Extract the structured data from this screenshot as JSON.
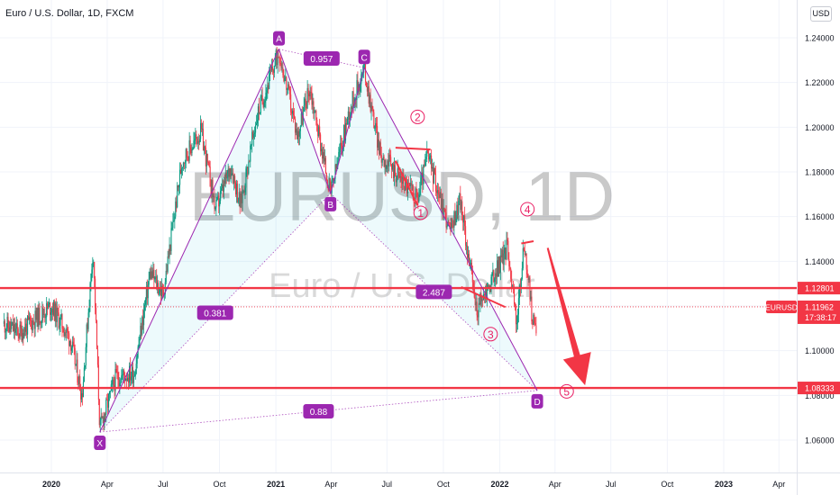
{
  "header": {
    "title": "Euro / U.S. Dollar, 1D, FXCM"
  },
  "currency_button": "USD",
  "watermark": {
    "symbol": "EURUSD, 1D",
    "name": "Euro / U.S. Dollar"
  },
  "chart_data": {
    "type": "candlestick",
    "symbol": "EURUSD",
    "interval": "1D",
    "source": "FXCM",
    "x_ticks": [
      "2020",
      "Apr",
      "Jul",
      "Oct",
      "2021",
      "Apr",
      "Jul",
      "Oct",
      "2022",
      "Apr",
      "Jul",
      "Oct",
      "2023",
      "Apr"
    ],
    "x_range": [
      "2019-10",
      "2023-05"
    ],
    "ylim": [
      1.048,
      1.252
    ],
    "y_ticks": [
      "1.24000",
      "1.22000",
      "1.20000",
      "1.18000",
      "1.16000",
      "1.14000",
      "1.12000",
      "1.10000",
      "1.08000",
      "1.06000"
    ],
    "price_path": [
      [
        "2019-10-15",
        1.112
      ],
      [
        "2019-11-10",
        1.108
      ],
      [
        "2019-12-05",
        1.114
      ],
      [
        "2020-01-01",
        1.12
      ],
      [
        "2020-02-01",
        1.105
      ],
      [
        "2020-02-20",
        1.08
      ],
      [
        "2020-03-09",
        1.146
      ],
      [
        "2020-03-20",
        1.065
      ],
      [
        "2020-04-15",
        1.088
      ],
      [
        "2020-05-15",
        1.09
      ],
      [
        "2020-06-10",
        1.135
      ],
      [
        "2020-07-01",
        1.125
      ],
      [
        "2020-08-01",
        1.185
      ],
      [
        "2020-09-01",
        1.198
      ],
      [
        "2020-09-25",
        1.163
      ],
      [
        "2020-10-20",
        1.183
      ],
      [
        "2020-11-04",
        1.165
      ],
      [
        "2020-12-01",
        1.205
      ],
      [
        "2021-01-06",
        1.234
      ],
      [
        "2021-02-05",
        1.196
      ],
      [
        "2021-02-25",
        1.218
      ],
      [
        "2021-03-31",
        1.17
      ],
      [
        "2021-05-01",
        1.208
      ],
      [
        "2021-05-25",
        1.226
      ],
      [
        "2021-06-20",
        1.188
      ],
      [
        "2021-07-15",
        1.18
      ],
      [
        "2021-08-20",
        1.168
      ],
      [
        "2021-09-05",
        1.188
      ],
      [
        "2021-10-12",
        1.153
      ],
      [
        "2021-10-28",
        1.168
      ],
      [
        "2021-11-24",
        1.118
      ],
      [
        "2021-12-20",
        1.132
      ],
      [
        "2022-01-14",
        1.147
      ],
      [
        "2022-01-28",
        1.112
      ],
      [
        "2022-02-10",
        1.148
      ],
      [
        "2022-02-24",
        1.112
      ],
      [
        "2022-03-02",
        1.112
      ]
    ],
    "horizontal_lines": [
      {
        "price": 1.12801,
        "label": "1.12801",
        "color": "#f23645"
      },
      {
        "price": 1.08333,
        "label": "1.08333",
        "color": "#f23645"
      }
    ],
    "current_price": {
      "symbol": "EURUSD",
      "price": "1.11962",
      "countdown": "17:38:17",
      "color": "#f23645"
    },
    "harmonic_pattern": {
      "points": [
        {
          "label": "X",
          "date": "2020-03-20",
          "price": 1.0636
        },
        {
          "label": "A",
          "date": "2021-01-06",
          "price": 1.2349
        },
        {
          "label": "B",
          "date": "2021-03-31",
          "price": 1.1704
        },
        {
          "label": "C",
          "date": "2021-05-25",
          "price": 1.2266
        },
        {
          "label": "D",
          "date": "2022-03-03",
          "price": 1.0822
        }
      ],
      "ratios": [
        {
          "label": "0.381",
          "between": "XA-AB"
        },
        {
          "label": "0.957",
          "between": "AB-BC"
        },
        {
          "label": "2.487",
          "between": "BC-CD"
        },
        {
          "label": "0.88",
          "between": "XA-AD"
        }
      ],
      "color": "#9c27b0"
    },
    "elliott_waves": [
      {
        "label": "1",
        "date": "2021-08-25",
        "price": 1.1617
      },
      {
        "label": "2",
        "date": "2021-08-20",
        "price": 1.2046
      },
      {
        "label": "3",
        "date": "2021-12-17",
        "price": 1.1074
      },
      {
        "label": "4",
        "date": "2022-02-15",
        "price": 1.1633
      },
      {
        "label": "5",
        "date": "2022-04-20",
        "price": 1.0818
      }
    ],
    "trendlines": [
      [
        [
          "2021-07-15",
          1.1908
        ],
        [
          "2021-09-10",
          1.19
        ]
      ],
      [
        [
          "2021-07-15",
          1.185
        ],
        [
          "2021-08-20",
          1.165
        ]
      ],
      [
        [
          "2021-10-30",
          1.1285
        ],
        [
          "2022-01-10",
          1.1195
        ]
      ],
      [
        [
          "2022-02-05",
          1.148
        ],
        [
          "2022-02-25",
          1.149
        ]
      ]
    ],
    "forecast_arrow": {
      "from": [
        "2022-03-20",
        1.146
      ],
      "to": [
        "2022-05-20",
        1.0845
      ],
      "color": "#f23645"
    }
  }
}
